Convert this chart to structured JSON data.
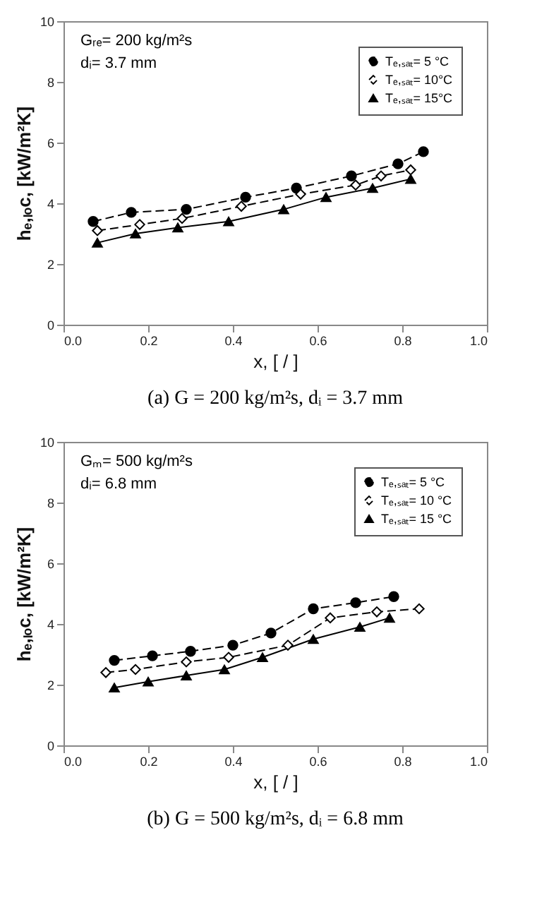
{
  "chart_data": [
    {
      "type": "line",
      "title": "(a) G = 200 kg/m²s, dᵢ = 3.7 mm",
      "xlabel": "x, [ / ]",
      "ylabel": "hₑ,ₗₒc, [kW/m²K]",
      "annotations": [
        "Gᵣₑ= 200 kg/m²s",
        "dᵢ= 3.7 mm"
      ],
      "xlim": [
        0,
        1
      ],
      "ylim": [
        0,
        10
      ],
      "xticks": [
        {
          "value": 0,
          "label": "0.0"
        },
        {
          "value": 0.2,
          "label": "0.2"
        },
        {
          "value": 0.4,
          "label": "0.4"
        },
        {
          "value": 0.6,
          "label": "0.6"
        },
        {
          "value": 0.8,
          "label": "0.8"
        },
        {
          "value": 1,
          "label": "1.0"
        }
      ],
      "yticks": [
        0,
        2,
        4,
        6,
        8,
        10
      ],
      "legend": "top right",
      "series": [
        {
          "name": "Tₑ,ₛₐₜ= 5 °C",
          "color": "#000000",
          "marker": "circle",
          "line_style": "dashed",
          "x": [
            0.07,
            0.16,
            0.29,
            0.43,
            0.55,
            0.68,
            0.79,
            0.85
          ],
          "values": [
            3.4,
            3.7,
            3.8,
            4.2,
            4.5,
            4.9,
            5.3,
            5.7
          ]
        },
        {
          "name": "Tₑ,ₛₐₜ= 10°C",
          "color": "#000000",
          "marker": "diamond",
          "line_style": "dashed",
          "x": [
            0.08,
            0.18,
            0.28,
            0.42,
            0.56,
            0.69,
            0.75,
            0.82
          ],
          "values": [
            3.1,
            3.3,
            3.5,
            3.9,
            4.3,
            4.6,
            4.9,
            5.1
          ]
        },
        {
          "name": "Tₑ,ₛₐₜ= 15°C",
          "color": "#000000",
          "marker": "triangle",
          "line_style": "solid",
          "x": [
            0.08,
            0.17,
            0.27,
            0.39,
            0.52,
            0.62,
            0.73,
            0.82
          ],
          "values": [
            2.7,
            3.0,
            3.2,
            3.4,
            3.8,
            4.2,
            4.5,
            4.8
          ]
        }
      ]
    },
    {
      "type": "line",
      "title": "(b) G = 500 kg/m²s, dᵢ = 6.8 mm",
      "xlabel": "x, [ / ]",
      "ylabel": "hₑ,ₗₒc, [kW/m²K]",
      "annotations": [
        "Gₘ= 500 kg/m²s",
        "dᵢ= 6.8 mm"
      ],
      "xlim": [
        0,
        1
      ],
      "ylim": [
        0,
        10
      ],
      "xticks": [
        {
          "value": 0,
          "label": "0.0"
        },
        {
          "value": 0.2,
          "label": "0.2"
        },
        {
          "value": 0.4,
          "label": "0.4"
        },
        {
          "value": 0.6,
          "label": "0.6"
        },
        {
          "value": 0.8,
          "label": "0.8"
        },
        {
          "value": 1,
          "label": "1.0"
        }
      ],
      "yticks": [
        0,
        2,
        4,
        6,
        8,
        10
      ],
      "legend": "top right",
      "series": [
        {
          "name": "Tₑ,ₛₐₜ= 5 °C",
          "color": "#000000",
          "marker": "circle",
          "line_style": "dashed",
          "x": [
            0.12,
            0.21,
            0.3,
            0.4,
            0.49,
            0.59,
            0.69,
            0.78
          ],
          "values": [
            2.8,
            2.95,
            3.1,
            3.3,
            3.7,
            4.5,
            4.7,
            4.9
          ]
        },
        {
          "name": "Tₑ,ₛₐₜ= 10 °C",
          "color": "#000000",
          "marker": "diamond",
          "line_style": "dashed",
          "x": [
            0.1,
            0.17,
            0.29,
            0.39,
            0.53,
            0.63,
            0.74,
            0.84
          ],
          "values": [
            2.4,
            2.5,
            2.75,
            2.9,
            3.3,
            4.2,
            4.4,
            4.5
          ]
        },
        {
          "name": "Tₑ,ₛₐₜ= 15 °C",
          "color": "#000000",
          "marker": "triangle",
          "line_style": "solid",
          "x": [
            0.12,
            0.2,
            0.29,
            0.38,
            0.47,
            0.59,
            0.7,
            0.77
          ],
          "values": [
            1.9,
            2.1,
            2.3,
            2.5,
            2.9,
            3.5,
            3.9,
            4.2
          ]
        }
      ]
    }
  ]
}
